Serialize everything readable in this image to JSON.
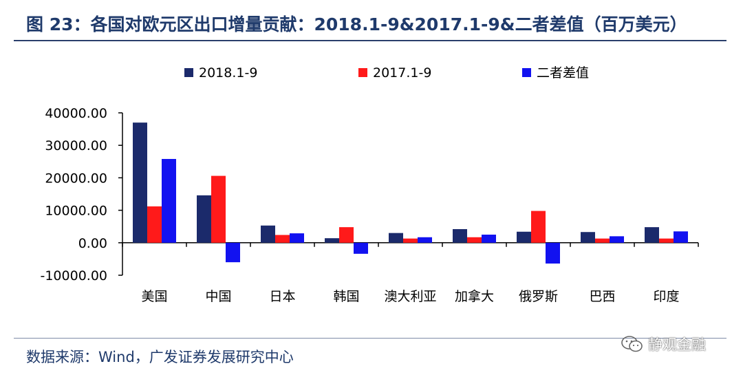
{
  "header": {
    "title": "图 23：各国对欧元区出口增量贡献：2018.1-9&2017.1-9&二者差值（百万美元）"
  },
  "footer": {
    "source": "数据来源：Wind，广发证券发展研究中心",
    "watermark": "静观金融",
    "watermark_icon": "wechat-icon"
  },
  "chart_data": {
    "type": "bar",
    "categories": [
      "美国",
      "中国",
      "日本",
      "韩国",
      "澳大利亚",
      "加拿大",
      "俄罗斯",
      "巴西",
      "印度"
    ],
    "series": [
      {
        "name": "2018.1-9",
        "color": "#1b2a6b",
        "values": [
          37000,
          14600,
          5300,
          1400,
          3000,
          4200,
          3400,
          3300,
          4800
        ]
      },
      {
        "name": "2017.1-9",
        "color": "#ff1a1a",
        "values": [
          11200,
          20600,
          2400,
          4800,
          1300,
          1700,
          9800,
          1300,
          1300
        ]
      },
      {
        "name": "二者差值",
        "color": "#1212f0",
        "values": [
          25800,
          -6000,
          2900,
          -3400,
          1700,
          2500,
          -6400,
          2000,
          3500
        ]
      }
    ],
    "yticks": [
      "40000.00",
      "30000.00",
      "20000.00",
      "10000.00",
      "0.00",
      "-10000.00"
    ],
    "ytick_values": [
      40000,
      30000,
      20000,
      10000,
      0,
      -10000
    ],
    "ylim": [
      -10000,
      40000
    ],
    "xlabel": "",
    "ylabel": "",
    "legend_position": "top",
    "grid": false
  }
}
